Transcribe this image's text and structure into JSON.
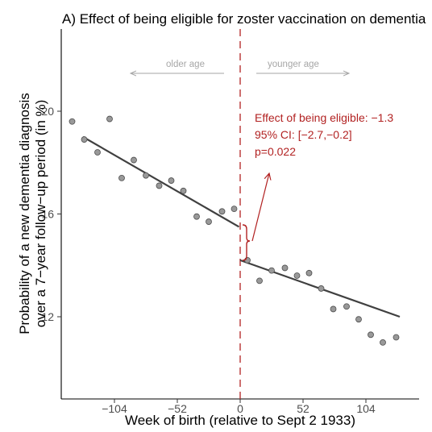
{
  "chart_data": {
    "type": "scatter",
    "title": "A) Effect of being eligible for zoster vaccination on dementia",
    "xlabel": "Week of birth (relative to Sept 2 1933)",
    "ylabel_line1": "Probability of a new dementia diagnosis",
    "ylabel_line2": "over a 7−year follow−up period (in %)",
    "xlim": [
      -148,
      148
    ],
    "ylim": [
      8.8,
      23.2
    ],
    "x_ticks": [
      -104,
      -52,
      0,
      52,
      104
    ],
    "x_tick_labels": [
      "−104",
      "−52",
      "0",
      "52",
      "104"
    ],
    "y_ticks": [
      12,
      16,
      20
    ],
    "y_tick_labels": [
      "12",
      "16",
      "20"
    ],
    "points": [
      {
        "x": -139,
        "y": 19.6
      },
      {
        "x": -129,
        "y": 18.9
      },
      {
        "x": -118,
        "y": 18.4
      },
      {
        "x": -108,
        "y": 19.7
      },
      {
        "x": -98,
        "y": 17.4
      },
      {
        "x": -88,
        "y": 18.1
      },
      {
        "x": -78,
        "y": 17.5
      },
      {
        "x": -67,
        "y": 17.1
      },
      {
        "x": -57,
        "y": 17.3
      },
      {
        "x": -47,
        "y": 16.9
      },
      {
        "x": -36,
        "y": 15.9
      },
      {
        "x": -26,
        "y": 15.7
      },
      {
        "x": -15,
        "y": 16.1
      },
      {
        "x": -5,
        "y": 16.2
      },
      {
        "x": 6,
        "y": 14.2
      },
      {
        "x": 16,
        "y": 13.4
      },
      {
        "x": 26,
        "y": 13.8
      },
      {
        "x": 37,
        "y": 13.9
      },
      {
        "x": 47,
        "y": 13.6
      },
      {
        "x": 57,
        "y": 13.7
      },
      {
        "x": 67,
        "y": 13.1
      },
      {
        "x": 77,
        "y": 12.3
      },
      {
        "x": 88,
        "y": 12.4
      },
      {
        "x": 98,
        "y": 11.9
      },
      {
        "x": 108,
        "y": 11.3
      },
      {
        "x": 118,
        "y": 11.0
      },
      {
        "x": 129,
        "y": 11.2
      }
    ],
    "fit_lines": [
      {
        "x": [
          -130,
          -1
        ],
        "y": [
          19.0,
          15.5
        ]
      },
      {
        "x": [
          0,
          132
        ],
        "y": [
          14.2,
          12.0
        ]
      }
    ],
    "cutoff_x": 0,
    "left_arrow_label": "older age",
    "right_arrow_label": "younger age",
    "annotation": {
      "line1": "Effect of being eligible: −1.3",
      "line2": "95% CI: [−2.7,−0.2]",
      "line3": "p=0.022"
    },
    "colors": {
      "point_fill": "#999999",
      "point_stroke": "#4d4d4d",
      "fit_line": "#404040",
      "cutoff_line": "#b22222",
      "annotation": "#b22222",
      "age_arrow": "#a6a6a6"
    }
  }
}
